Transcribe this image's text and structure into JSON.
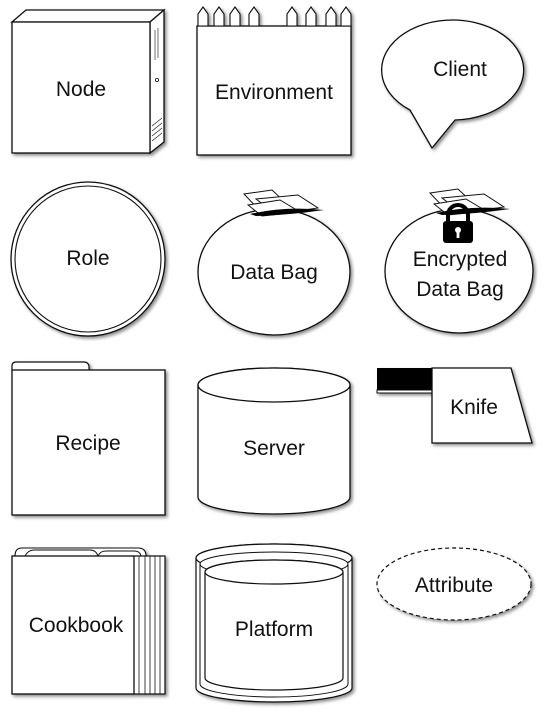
{
  "shapes": {
    "node": "Node",
    "environment": "Environment",
    "client": "Client",
    "role": "Role",
    "data_bag": "Data Bag",
    "encrypted_data_bag": [
      "Encrypted",
      "Data Bag"
    ],
    "recipe": "Recipe",
    "server": "Server",
    "knife": "Knife",
    "cookbook": "Cookbook",
    "platform": "Platform",
    "attribute": "Attribute"
  },
  "colors": {
    "stroke": "#111111",
    "fill": "#ffffff",
    "shadow": "#9a9a9a",
    "knife_handle": "#000000"
  },
  "icons": {
    "lock": "padlock-icon"
  }
}
